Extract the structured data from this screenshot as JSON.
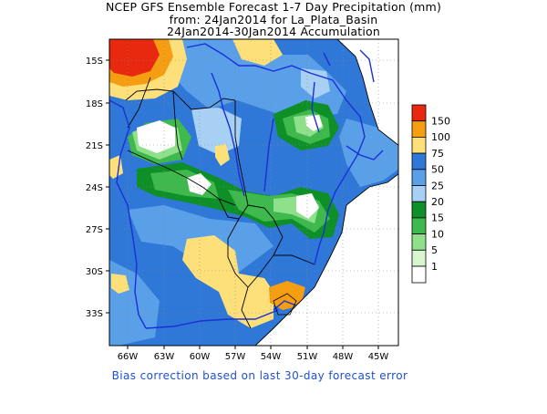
{
  "header": {
    "line1": "NCEP GFS Ensemble Forecast 1-7 Day Precipitation (mm)",
    "line2": "from: 24Jan2014   for La_Plata_Basin",
    "line3": "24Jan2014-30Jan2014 Accumulation"
  },
  "footer": {
    "note": "Bias correction based on last 30-day forecast error"
  },
  "axes": {
    "lat_labels": [
      "15S",
      "18S",
      "21S",
      "24S",
      "27S",
      "30S",
      "33S"
    ],
    "lon_labels": [
      "66W",
      "63W",
      "60W",
      "57W",
      "54W",
      "51W",
      "48W",
      "45W"
    ]
  },
  "legend": {
    "labels": [
      "150",
      "100",
      "75",
      "50",
      "25",
      "20",
      "15",
      "10",
      "5",
      "1"
    ],
    "colors": [
      "#e8280f",
      "#f59e12",
      "#fde07a",
      "#2f78d8",
      "#5aa0e8",
      "#a8d0f4",
      "#0e8f27",
      "#3fb94e",
      "#8fe08a",
      "#d8f6d0",
      "#ffffff"
    ]
  },
  "map_colors": {
    "ocean": "#ffffff",
    "borders": "#000000",
    "rivers": "#1a2fd8"
  }
}
